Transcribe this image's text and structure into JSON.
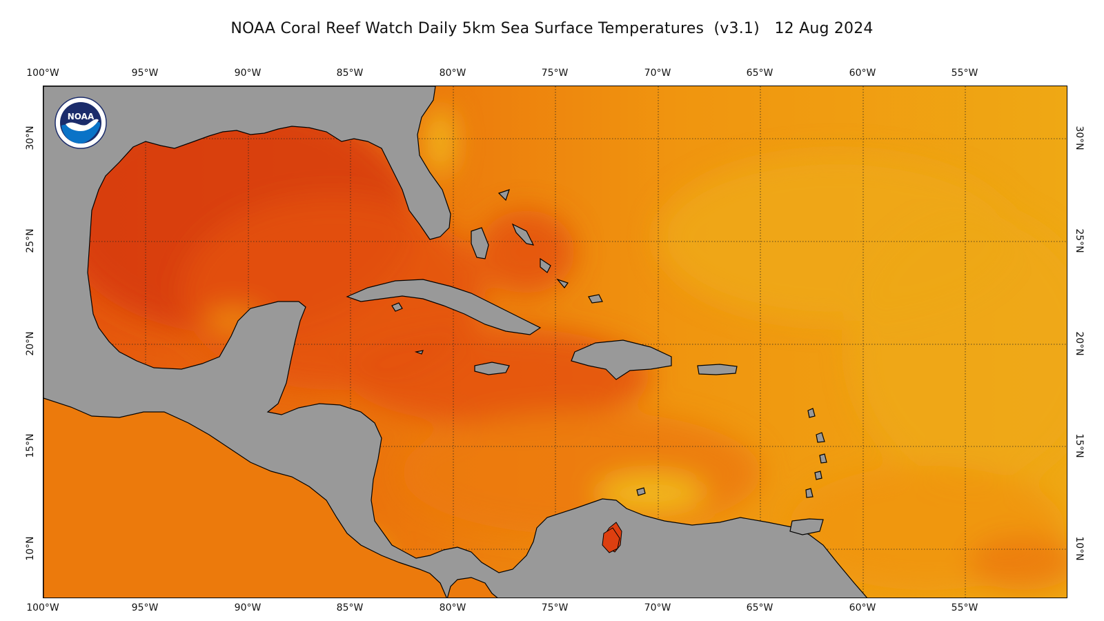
{
  "header": {
    "title_main": "NOAA Coral Reef Watch Daily 5km Sea Surface Temperatures",
    "title_version": "(v3.1)",
    "title_date": "12 Aug 2024"
  },
  "axes": {
    "lon_top": [
      "100°W",
      "95°W",
      "90°W",
      "85°W",
      "80°W",
      "75°W",
      "70°W",
      "65°W",
      "60°W",
      "55°W"
    ],
    "lon_bottom": [
      "100°W",
      "95°W",
      "90°W",
      "85°W",
      "80°W",
      "75°W",
      "70°W",
      "65°W",
      "60°W",
      "55°W"
    ],
    "lat_left": [
      "30°N",
      "25°N",
      "20°N",
      "15°N",
      "10°N"
    ],
    "lat_right": [
      "30°N",
      "25°N",
      "20°N",
      "15°N",
      "10°N"
    ]
  },
  "map": {
    "extent": {
      "lon_min": -100,
      "lon_max": -50,
      "lat_min": 8,
      "lat_max": 32
    },
    "land_color": "#999999",
    "ocean_colors": {
      "hottest": "#d63a0c",
      "hot": "#e4520d",
      "warm": "#ec7a0c",
      "mild": "#f0950f",
      "cool": "#efa814",
      "coolest": "#f2c31c"
    },
    "island_hot_spot": "#dd3f10"
  },
  "logo": {
    "name": "noaa-logo",
    "text": "NOAA"
  }
}
